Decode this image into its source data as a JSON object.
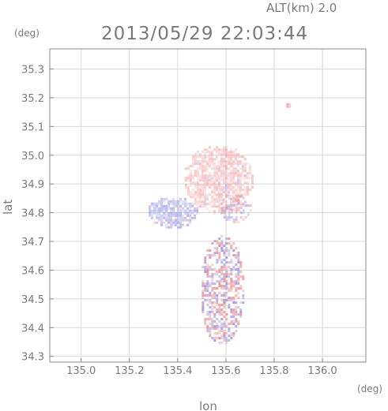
{
  "chart_data": {
    "type": "heatmap",
    "title": "2013/05/29 22:03:44",
    "subtitle": "ALT(km)  2.0",
    "xlabel": "lon",
    "ylabel": "lat",
    "xunit": "(deg)",
    "yunit": "(deg)",
    "xlim": [
      134.87,
      136.18
    ],
    "ylim": [
      34.28,
      35.37
    ],
    "xticks": [
      "135.0",
      "135.2",
      "135.4",
      "135.6",
      "135.8",
      "136.0"
    ],
    "yticks": [
      "34.3",
      "34.4",
      "34.5",
      "34.6",
      "34.7",
      "34.8",
      "34.9",
      "35.0",
      "35.1",
      "35.2",
      "35.3"
    ],
    "grid": true,
    "colors": {
      "positive": "#f08080",
      "negative": "#8a8ae6",
      "axis": "#7a7a7a",
      "grid": "#d8d8d8"
    },
    "regions": [
      {
        "name": "northern positive plume",
        "lon": [
          135.42,
          135.71
        ],
        "lat": [
          34.8,
          35.04
        ],
        "sign": "positive",
        "strength": 0.35
      },
      {
        "name": "western negative patch",
        "lon": [
          135.27,
          135.48
        ],
        "lat": [
          34.75,
          34.86
        ],
        "sign": "negative",
        "strength": 0.45
      },
      {
        "name": "mixed center",
        "lon": [
          135.57,
          135.7
        ],
        "lat": [
          34.77,
          34.87
        ],
        "sign": "mixed",
        "strength": 0.4
      },
      {
        "name": "scattered southern column",
        "lon": [
          135.49,
          135.67
        ],
        "lat": [
          34.34,
          34.73
        ],
        "sign": "mixed",
        "strength": 0.6
      },
      {
        "name": "isolated positive spot",
        "lon": [
          135.84,
          135.87
        ],
        "lat": [
          35.17,
          35.19
        ],
        "sign": "positive",
        "strength": 0.5
      }
    ]
  }
}
